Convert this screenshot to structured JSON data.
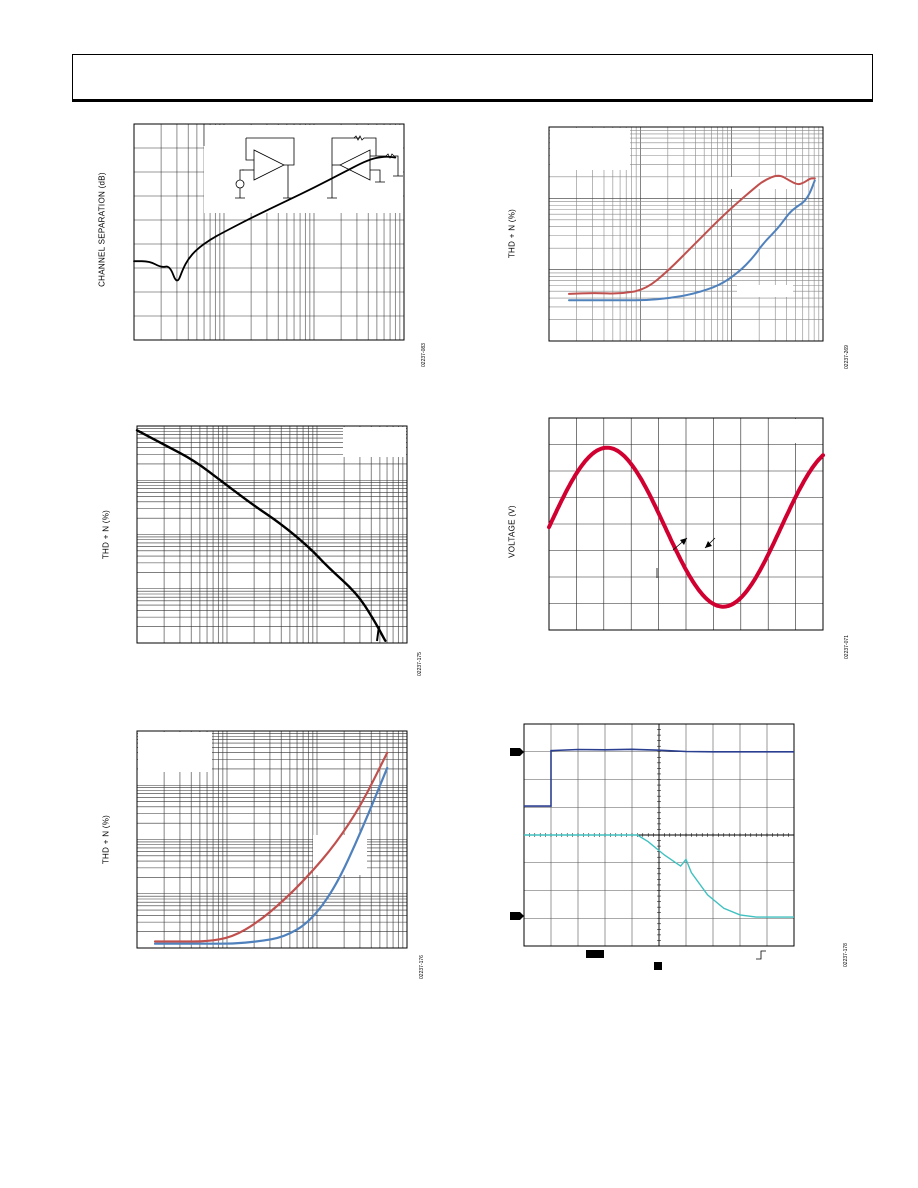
{
  "charts": {
    "c1": {
      "ylabel": "CHANNEL SEPARATION (dB)",
      "fig_id": "02237-083",
      "chart_data": {
        "type": "line",
        "xscale": "log",
        "x": [
          1,
          1.5,
          2,
          2.5,
          3,
          3.5,
          4,
          5,
          7,
          10,
          20,
          50,
          100,
          200,
          400,
          600,
          800
        ],
        "series": [
          {
            "values": [
              0.365,
              0.365,
              0.335,
              0.345,
              0.255,
              0.33,
              0.375,
              0.42,
              0.465,
              0.5,
              0.565,
              0.645,
              0.705,
              0.77,
              0.835,
              0.85,
              0.845
            ],
            "color": "#000000"
          }
        ],
        "ylim": [
          0,
          1
        ],
        "grid": true,
        "inset": "circuit schematic (top-right)"
      }
    },
    "c2": {
      "ylabel": "THD + N (%)",
      "fig_id": "02237-269",
      "chart_data": {
        "type": "line",
        "xscale": "log",
        "x": [
          1,
          2,
          4,
          8,
          15,
          30,
          60,
          100,
          150,
          200,
          300,
          400,
          500,
          600,
          700,
          800
        ],
        "series": [
          {
            "values": [
              0.22,
              0.225,
              0.22,
              0.24,
              0.33,
              0.45,
              0.57,
              0.65,
              0.71,
              0.75,
              0.78,
              0.75,
              0.73,
              0.74,
              0.76,
              0.76
            ],
            "color": "#c0504d"
          },
          {
            "values": [
              0.19,
              0.19,
              0.19,
              0.19,
              0.2,
              0.22,
              0.26,
              0.32,
              0.39,
              0.46,
              0.53,
              0.6,
              0.63,
              0.65,
              0.69,
              0.75
            ],
            "color": "#4f81bd"
          }
        ],
        "ylim": [
          0,
          1
        ],
        "grid": true
      }
    },
    "c3": {
      "ylabel": "THD + N (%)",
      "fig_id": "02237-175",
      "chart_data": {
        "type": "line",
        "xscale": "log",
        "x": [
          1,
          2,
          4,
          8,
          16,
          32,
          64,
          100,
          200,
          300,
          400
        ],
        "series": [
          {
            "values": [
              0.98,
              0.91,
              0.84,
              0.74,
              0.64,
              0.55,
              0.44,
              0.35,
              0.23,
              0.11,
              0.01
            ],
            "color": "#000000"
          }
        ],
        "ylim": [
          0,
          1
        ],
        "grid": true
      }
    },
    "c4": {
      "ylabel": "VOLTAGE (V)",
      "fig_id": "02237-071",
      "chart_data": {
        "type": "line",
        "x": [
          0,
          0.1,
          0.2,
          0.3,
          0.4,
          0.5,
          0.6,
          0.7,
          0.8,
          0.9,
          1.0
        ],
        "series": [
          {
            "values": [
              0.5,
              0.73,
              0.86,
              0.85,
              0.65,
              0.38,
              0.16,
              0.11,
              0.24,
              0.46,
              0.59
            ],
            "color": "#d00030"
          }
        ],
        "ylim": [
          0,
          1
        ],
        "grid": true,
        "annotation": "arrows near crossing"
      }
    },
    "c5": {
      "ylabel": "THD + N (%)",
      "fig_id": "02237-176",
      "chart_data": {
        "type": "line",
        "xscale": "log",
        "x": [
          1,
          2,
          4,
          8,
          16,
          32,
          64,
          128,
          256,
          512
        ],
        "series": [
          {
            "values": [
              0.03,
              0.03,
              0.03,
              0.05,
              0.12,
              0.22,
              0.34,
              0.48,
              0.66,
              0.9
            ],
            "color": "#c0504d"
          },
          {
            "values": [
              0.02,
              0.02,
              0.02,
              0.02,
              0.03,
              0.05,
              0.12,
              0.28,
              0.54,
              0.83
            ],
            "color": "#4f81bd"
          }
        ],
        "ylim": [
          0,
          1
        ],
        "grid": true
      }
    },
    "c6": {
      "fig_id": "02237-178",
      "chart_data": {
        "type": "line",
        "x": [
          0,
          0.1,
          0.2,
          0.3,
          0.4,
          0.5,
          0.6,
          0.7,
          0.8,
          0.9,
          1.0
        ],
        "series": [
          {
            "values": [
              0.63,
              0.88,
              0.89,
              0.88,
              0.89,
              0.88,
              0.88,
              0.87,
              0.87,
              0.87,
              0.87
            ],
            "color": "#2b3f91"
          },
          {
            "values": [
              0.5,
              0.5,
              0.5,
              0.5,
              0.49,
              0.44,
              0.37,
              0.27,
              0.16,
              0.13,
              0.13
            ],
            "color": "#40c0c0"
          }
        ],
        "ylim": [
          0,
          1
        ],
        "grid": true,
        "style": "oscilloscope",
        "markers": [
          "channel-1-marker",
          "channel-2-marker",
          "trigger-marker"
        ]
      }
    }
  }
}
